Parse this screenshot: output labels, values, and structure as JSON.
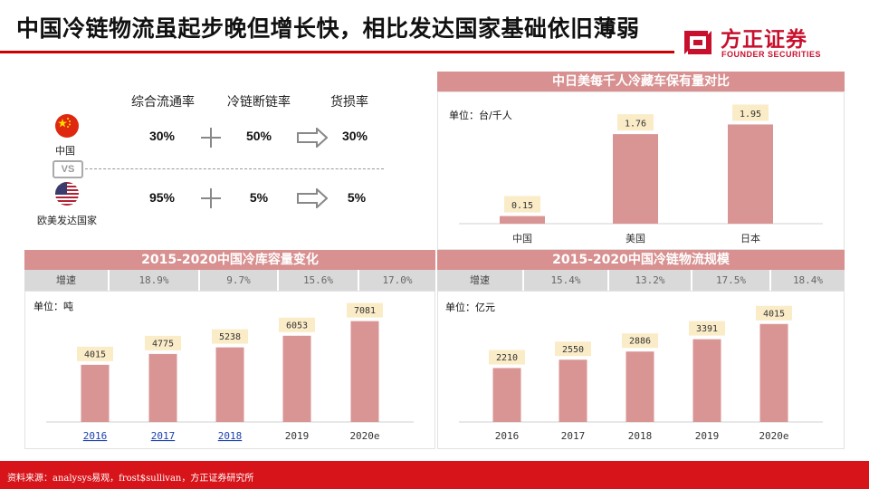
{
  "header": {
    "title": "中国冷链物流虽起步晚但增长快，相比发达国家基础依旧薄弱",
    "logo_cn": "方正证券",
    "logo_en": "FOUNDER SECURITIES",
    "brand_color": "#c8102e"
  },
  "comparison": {
    "headers": [
      "综合流通率",
      "冷链断链率",
      "货损率"
    ],
    "rows": [
      {
        "country": "中国",
        "flag_icon": "china-flag-icon",
        "values": [
          "30%",
          "50%",
          "30%"
        ]
      },
      {
        "country": "欧美发达国家",
        "flag_icon": "usa-flag-icon",
        "values": [
          "95%",
          "5%",
          "5%"
        ]
      }
    ],
    "vs_label": "VS"
  },
  "chart_data": [
    {
      "type": "bar",
      "title": "中日美每千人冷藏车保有量对比",
      "unit": "单位：台/千人",
      "categories": [
        "中国",
        "美国",
        "日本"
      ],
      "values": [
        0.15,
        1.76,
        1.95
      ],
      "value_labels": [
        "0.15",
        "1.76",
        "1.95"
      ],
      "ylim": [
        0,
        2.1
      ],
      "bar_color": "#d99594",
      "grid": false
    },
    {
      "type": "bar",
      "title": "2015-2020中国冷库容量变化",
      "unit": "单位：吨",
      "growth_label": "增速",
      "growth": [
        "18.9%",
        "9.7%",
        "15.6%",
        "17.0%"
      ],
      "categories": [
        "2016",
        "2017",
        "2018",
        "2019",
        "2020e"
      ],
      "values": [
        4015,
        4775,
        5238,
        6053,
        7081
      ],
      "value_labels": [
        "4015",
        "4775",
        "5238",
        "6053",
        "7081"
      ],
      "ylim": [
        0,
        8200
      ],
      "bar_color": "#d99594",
      "grid": false
    },
    {
      "type": "bar",
      "title": "2015-2020中国冷链物流规模",
      "unit": "单位：亿元",
      "growth_label": "增速",
      "growth": [
        "15.4%",
        "13.2%",
        "17.5%",
        "18.4%"
      ],
      "categories": [
        "2016",
        "2017",
        "2018",
        "2019",
        "2020e"
      ],
      "values": [
        2210,
        2550,
        2886,
        3391,
        4015
      ],
      "value_labels": [
        "2210",
        "2550",
        "2886",
        "3391",
        "4015"
      ],
      "ylim": [
        0,
        4600
      ],
      "bar_color": "#d99594",
      "grid": false
    }
  ],
  "footer": {
    "source": "资料来源：analysys易观，frost$sullivan，方正证券研究所"
  }
}
